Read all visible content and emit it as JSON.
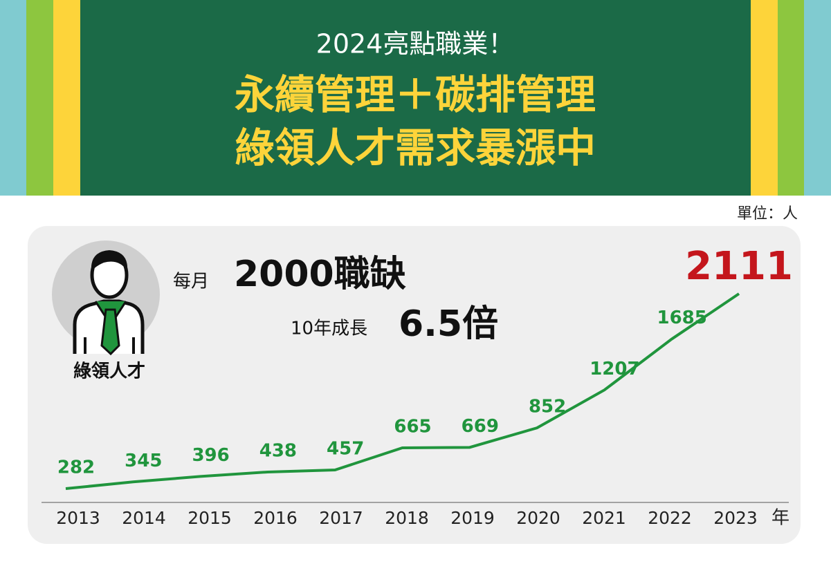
{
  "header": {
    "subtitle": "2024亮點職業！",
    "title_lines": [
      "永續管理＋碳排管理",
      "綠領人才需求暴漲中"
    ]
  },
  "badge": {
    "label": "綠領人才"
  },
  "headline": {
    "prefix": "每月",
    "main": "2000職缺",
    "growth_prefix": "10年成長",
    "growth": "6.5倍"
  },
  "chart_data": {
    "type": "line",
    "unit_label": "單位：人",
    "x_unit": "年",
    "categories": [
      "2013",
      "2014",
      "2015",
      "2016",
      "2017",
      "2018",
      "2019",
      "2020",
      "2021",
      "2022",
      "2023"
    ],
    "values": [
      282,
      345,
      396,
      438,
      457,
      665,
      669,
      852,
      1207,
      1685,
      2111
    ],
    "color": "#20953d",
    "highlight_color": "#c4161c"
  }
}
